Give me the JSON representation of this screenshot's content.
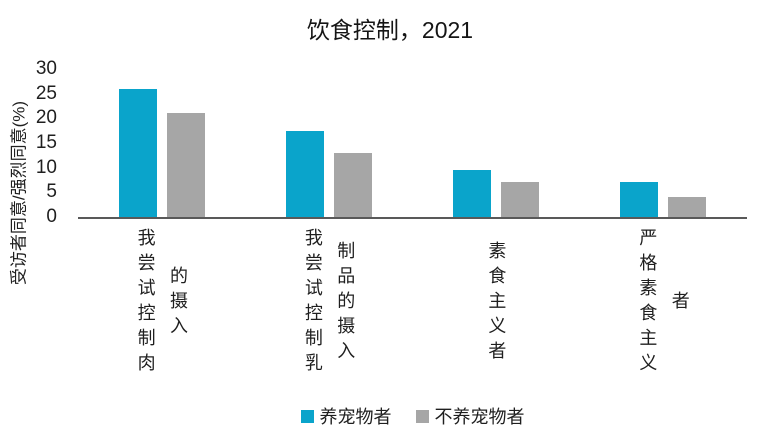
{
  "chart_data": {
    "type": "bar",
    "title": "饮食控制，2021",
    "ylabel": "受访者同意/强烈同意(%)",
    "categories": [
      "我尝试控制肉的摄入",
      "我尝试控制乳制品的摄入",
      "素食主义者",
      "严格素食主义者"
    ],
    "series": [
      {
        "name": "养宠物者",
        "color": "#0aa4cb",
        "values": [
          26,
          17.5,
          9.5,
          7
        ]
      },
      {
        "name": "不养宠物者",
        "color": "#a6a6a6",
        "values": [
          21,
          13,
          7,
          4
        ]
      }
    ],
    "ylim": [
      0,
      30
    ],
    "yticks": [
      0,
      5,
      10,
      15,
      20,
      25,
      30
    ],
    "grid": false,
    "legend_position": "bottom",
    "axis_line_color": "#595959"
  }
}
